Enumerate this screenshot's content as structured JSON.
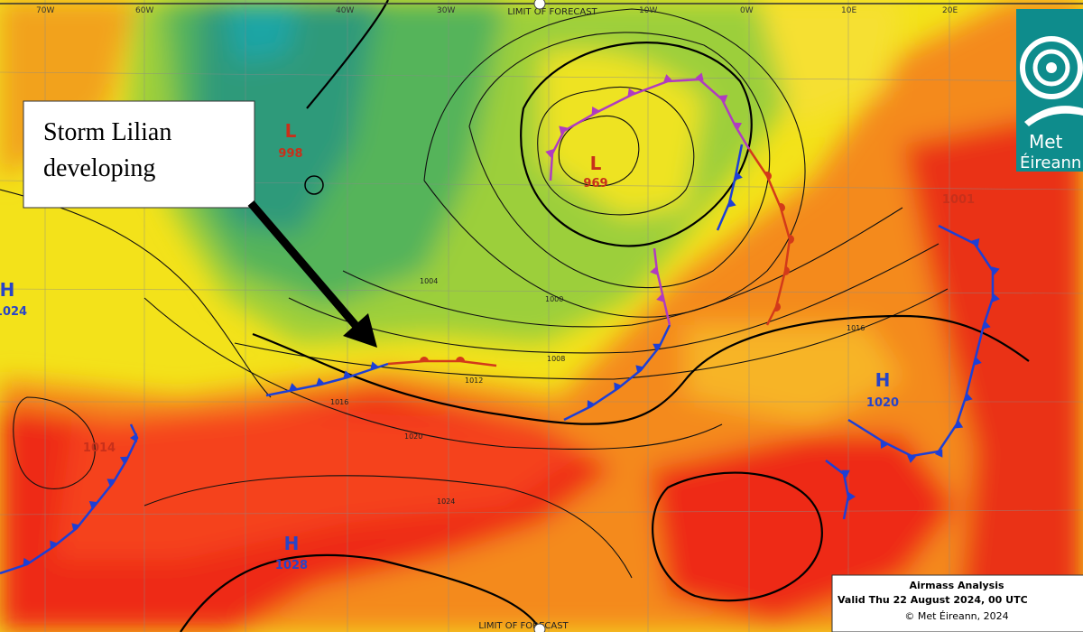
{
  "map": {
    "annotation": "Storm Lilian developing",
    "limit_labels": [
      "LIMIT OF FORECAST",
      "LIMIT OF FORECAST"
    ],
    "longitudes": [
      "70W",
      "60W",
      "40W",
      "30W",
      "10W",
      "0W",
      "10E",
      "20E"
    ],
    "pressure_centres": [
      {
        "letter": "L",
        "value": "998"
      },
      {
        "letter": "L",
        "value": "969"
      },
      {
        "letter": "H",
        "value": "1024"
      },
      {
        "letter": "H",
        "value": "1028"
      },
      {
        "letter": "H",
        "value": "1020"
      }
    ],
    "other_lows": [
      "1014",
      "1001"
    ],
    "isobar_labels": [
      "1004",
      "1000",
      "1008",
      "1012",
      "1016",
      "1020",
      "1024",
      "1016"
    ],
    "logo": {
      "line1": "Met",
      "line2": "Éireann"
    },
    "caption": {
      "title": "Airmass Analysis",
      "valid": "Valid Thu 22 August 2024, 00 UTC",
      "copyright": "© Met Éireann, 2024"
    }
  }
}
